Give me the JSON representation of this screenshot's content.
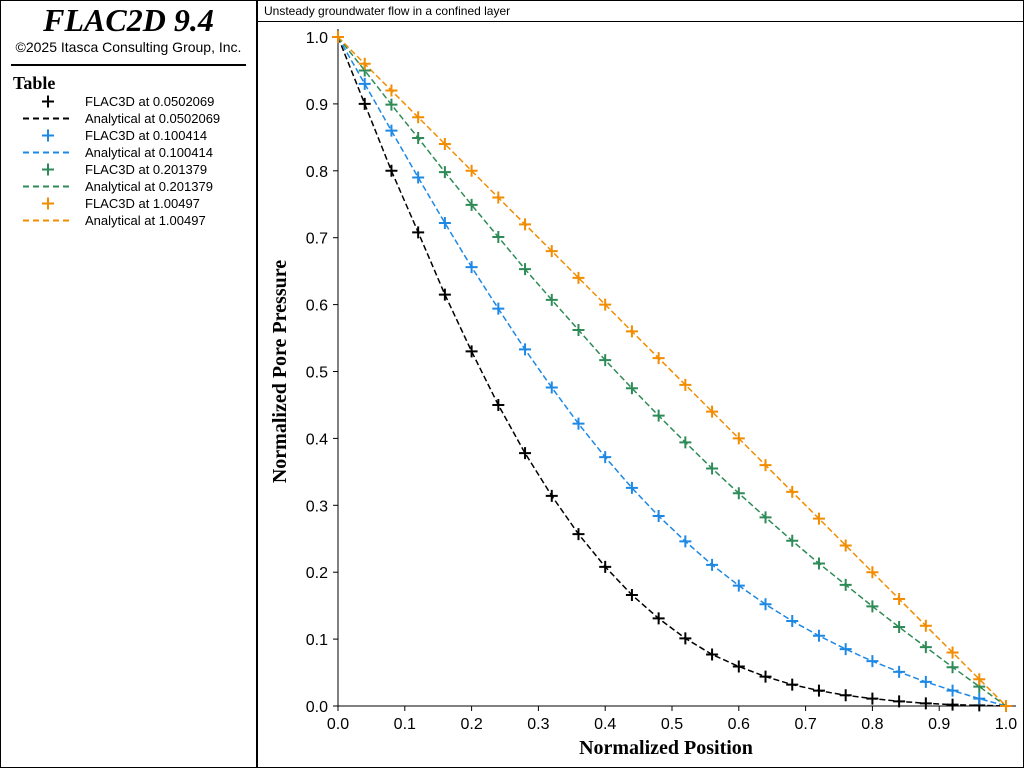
{
  "app": {
    "title": "FLAC2D 9.4",
    "copyright": "©2025 Itasca Consulting Group, Inc."
  },
  "legend": {
    "title": "Table",
    "entries": [
      {
        "label": "FLAC3D at 0.0502069",
        "marker": "plus",
        "color": "#000000"
      },
      {
        "label": "Analytical at 0.0502069",
        "marker": "dash",
        "color": "#000000"
      },
      {
        "label": "FLAC3D at 0.100414",
        "marker": "plus",
        "color": "#1e88e5"
      },
      {
        "label": "Analytical at 0.100414",
        "marker": "dash",
        "color": "#1e88e5"
      },
      {
        "label": "FLAC3D at 0.201379",
        "marker": "plus",
        "color": "#2e8b57"
      },
      {
        "label": "Analytical at 0.201379",
        "marker": "dash",
        "color": "#2e8b57"
      },
      {
        "label": "FLAC3D at 1.00497",
        "marker": "plus",
        "color": "#f28c00"
      },
      {
        "label": "Analytical at 1.00497",
        "marker": "dash",
        "color": "#f28c00"
      }
    ]
  },
  "chart_data": {
    "type": "line",
    "title": "Unsteady groundwater flow in a confined layer",
    "xlabel": "Normalized Position",
    "ylabel": "Normalized Pore Pressure",
    "xlim": [
      0,
      1
    ],
    "ylim": [
      0,
      1
    ],
    "xticks": [
      "0.0",
      "0.1",
      "0.2",
      "0.3",
      "0.4",
      "0.5",
      "0.6",
      "0.7",
      "0.8",
      "0.9",
      "1.0"
    ],
    "yticks": [
      "0.0",
      "0.1",
      "0.2",
      "0.3",
      "0.4",
      "0.5",
      "0.6",
      "0.7",
      "0.8",
      "0.9",
      "1.0"
    ],
    "grid": false,
    "legend_position": "left-panel",
    "x": [
      0,
      0.04,
      0.08,
      0.12,
      0.16,
      0.2,
      0.24,
      0.28,
      0.32,
      0.36,
      0.4,
      0.44,
      0.48,
      0.52,
      0.56,
      0.6,
      0.64,
      0.68,
      0.72,
      0.76,
      0.8,
      0.84,
      0.88,
      0.92,
      0.96,
      1.0
    ],
    "series": [
      {
        "name": "FLAC3D at 0.0502069",
        "style": "markers",
        "color": "#000000",
        "values": [
          1.0,
          0.9,
          0.8,
          0.708,
          0.615,
          0.53,
          0.45,
          0.378,
          0.314,
          0.257,
          0.208,
          0.166,
          0.131,
          0.101,
          0.077,
          0.059,
          0.044,
          0.032,
          0.023,
          0.016,
          0.011,
          0.007,
          0.004,
          0.002,
          0.001,
          0.0
        ]
      },
      {
        "name": "Analytical at 0.0502069",
        "style": "dashed",
        "color": "#000000",
        "values": [
          1.0,
          0.9,
          0.8,
          0.708,
          0.615,
          0.53,
          0.45,
          0.378,
          0.314,
          0.257,
          0.208,
          0.166,
          0.131,
          0.101,
          0.077,
          0.059,
          0.044,
          0.032,
          0.023,
          0.016,
          0.011,
          0.007,
          0.004,
          0.002,
          0.001,
          0.0
        ]
      },
      {
        "name": "FLAC3D at 0.100414",
        "style": "markers",
        "color": "#1e88e5",
        "values": [
          1.0,
          0.93,
          0.86,
          0.79,
          0.722,
          0.656,
          0.594,
          0.533,
          0.476,
          0.422,
          0.372,
          0.326,
          0.284,
          0.246,
          0.211,
          0.18,
          0.152,
          0.127,
          0.105,
          0.085,
          0.067,
          0.051,
          0.036,
          0.023,
          0.011,
          0.0
        ]
      },
      {
        "name": "Analytical at 0.100414",
        "style": "dashed",
        "color": "#1e88e5",
        "values": [
          1.0,
          0.93,
          0.86,
          0.79,
          0.722,
          0.656,
          0.594,
          0.533,
          0.476,
          0.422,
          0.372,
          0.326,
          0.284,
          0.246,
          0.211,
          0.18,
          0.152,
          0.127,
          0.105,
          0.085,
          0.067,
          0.051,
          0.036,
          0.023,
          0.011,
          0.0
        ]
      },
      {
        "name": "FLAC3D at 0.201379",
        "style": "markers",
        "color": "#2e8b57",
        "values": [
          1.0,
          0.95,
          0.899,
          0.849,
          0.798,
          0.749,
          0.701,
          0.653,
          0.607,
          0.562,
          0.517,
          0.475,
          0.434,
          0.394,
          0.355,
          0.318,
          0.282,
          0.247,
          0.213,
          0.181,
          0.149,
          0.118,
          0.088,
          0.058,
          0.029,
          0.0
        ]
      },
      {
        "name": "Analytical at 0.201379",
        "style": "dashed",
        "color": "#2e8b57",
        "values": [
          1.0,
          0.95,
          0.899,
          0.849,
          0.798,
          0.749,
          0.701,
          0.653,
          0.607,
          0.562,
          0.517,
          0.475,
          0.434,
          0.394,
          0.355,
          0.318,
          0.282,
          0.247,
          0.213,
          0.181,
          0.149,
          0.118,
          0.088,
          0.058,
          0.029,
          0.0
        ]
      },
      {
        "name": "FLAC3D at 1.00497",
        "style": "markers",
        "color": "#f28c00",
        "values": [
          1.0,
          0.96,
          0.92,
          0.88,
          0.84,
          0.8,
          0.76,
          0.72,
          0.68,
          0.64,
          0.6,
          0.56,
          0.52,
          0.48,
          0.44,
          0.4,
          0.36,
          0.32,
          0.28,
          0.24,
          0.2,
          0.16,
          0.12,
          0.08,
          0.04,
          0.0
        ]
      },
      {
        "name": "Analytical at 1.00497",
        "style": "dashed",
        "color": "#f28c00",
        "values": [
          1.0,
          0.96,
          0.92,
          0.88,
          0.84,
          0.8,
          0.76,
          0.72,
          0.68,
          0.64,
          0.6,
          0.56,
          0.52,
          0.48,
          0.44,
          0.4,
          0.36,
          0.32,
          0.28,
          0.24,
          0.2,
          0.16,
          0.12,
          0.08,
          0.04,
          0.0
        ]
      }
    ]
  }
}
